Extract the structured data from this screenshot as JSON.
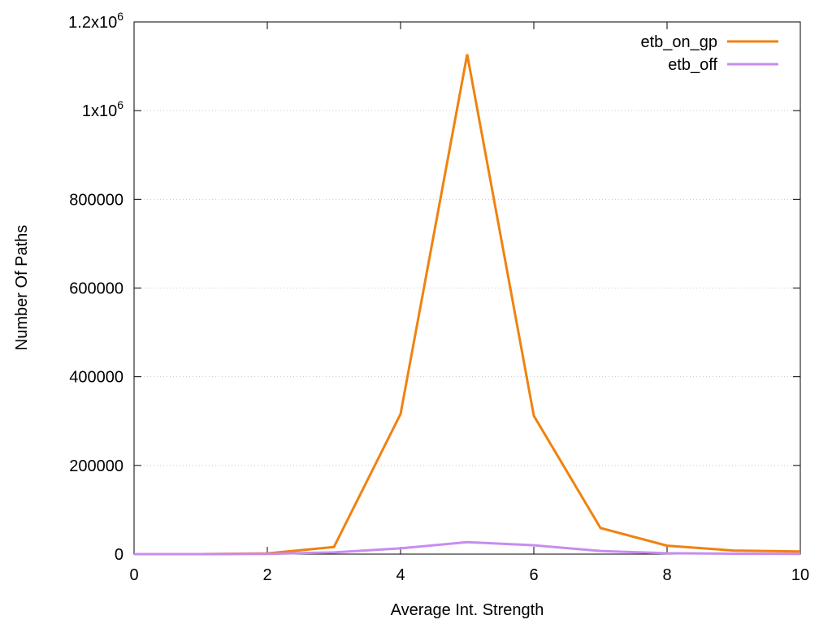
{
  "chart_data": {
    "type": "line",
    "title": "",
    "xlabel": "Average Int. Strength",
    "ylabel": "Number Of Paths",
    "xlim": [
      0,
      10
    ],
    "ylim": [
      0,
      1200000
    ],
    "grid": true,
    "legend_position": "top-right",
    "x_ticks": [
      0,
      2,
      4,
      6,
      8,
      10
    ],
    "x_tick_labels": [
      "0",
      "2",
      "4",
      "6",
      "8",
      "10"
    ],
    "y_ticks": [
      0,
      200000,
      400000,
      600000,
      800000,
      1000000,
      1200000
    ],
    "y_tick_labels": [
      {
        "base": "0",
        "exp": ""
      },
      {
        "base": "200000",
        "exp": ""
      },
      {
        "base": "400000",
        "exp": ""
      },
      {
        "base": "600000",
        "exp": ""
      },
      {
        "base": "800000",
        "exp": ""
      },
      {
        "base": "1x10",
        "exp": "6"
      },
      {
        "base": "1.2x10",
        "exp": "6"
      }
    ],
    "series": [
      {
        "name": "etb_on_gp",
        "color": "#f0820f",
        "x": [
          0,
          1,
          2,
          3,
          4,
          5,
          6,
          7,
          8,
          9,
          10
        ],
        "y": [
          0,
          0,
          1500,
          16000,
          316000,
          1127000,
          312000,
          59000,
          19000,
          8000,
          6000
        ]
      },
      {
        "name": "etb_off",
        "color": "#c88cf0",
        "x": [
          0,
          1,
          2,
          3,
          4,
          5,
          6,
          7,
          8,
          9,
          10
        ],
        "y": [
          0,
          0,
          500,
          4000,
          13000,
          27000,
          20000,
          7000,
          2000,
          1000,
          500
        ]
      }
    ]
  }
}
